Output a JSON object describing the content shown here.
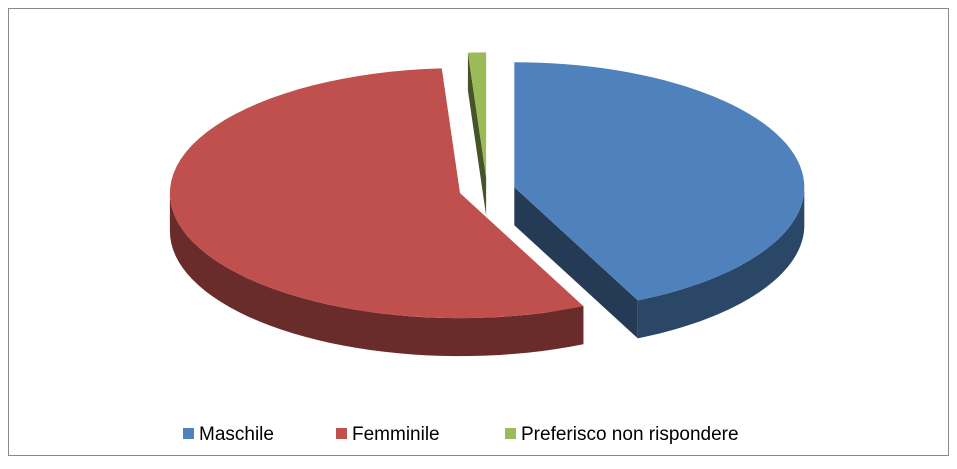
{
  "chart_data": {
    "type": "pie3d",
    "categories": [
      "Maschile",
      "Femminile",
      "Preferisco non rispondere"
    ],
    "values": [
      43,
      56,
      1
    ],
    "colors": [
      "#4f81bd",
      "#c0504d",
      "#9bbb59"
    ],
    "legend": "bottom"
  }
}
